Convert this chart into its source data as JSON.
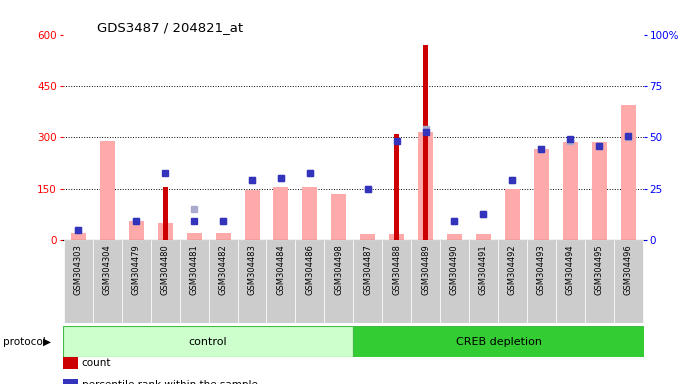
{
  "title": "GDS3487 / 204821_at",
  "samples": [
    "GSM304303",
    "GSM304304",
    "GSM304479",
    "GSM304480",
    "GSM304481",
    "GSM304482",
    "GSM304483",
    "GSM304484",
    "GSM304486",
    "GSM304498",
    "GSM304487",
    "GSM304488",
    "GSM304489",
    "GSM304490",
    "GSM304491",
    "GSM304492",
    "GSM304493",
    "GSM304494",
    "GSM304495",
    "GSM304496"
  ],
  "group_control_count": 10,
  "group_labels": [
    "control",
    "CREB depletion"
  ],
  "count_values": [
    0,
    0,
    0,
    155,
    0,
    0,
    0,
    0,
    0,
    0,
    0,
    310,
    570,
    0,
    0,
    0,
    0,
    0,
    0,
    0
  ],
  "percentile_values": [
    30,
    0,
    55,
    195,
    55,
    55,
    175,
    180,
    195,
    0,
    150,
    290,
    315,
    55,
    75,
    175,
    265,
    295,
    275,
    305
  ],
  "absent_value_bars": [
    20,
    290,
    55,
    50,
    20,
    20,
    145,
    155,
    155,
    135,
    18,
    18,
    315,
    18,
    18,
    150,
    265,
    285,
    285,
    395
  ],
  "absent_rank_bars": [
    30,
    0,
    55,
    0,
    90,
    55,
    175,
    180,
    195,
    0,
    150,
    0,
    325,
    55,
    75,
    175,
    265,
    290,
    275,
    300
  ],
  "ylim_left": [
    0,
    600
  ],
  "ylim_right": [
    0,
    100
  ],
  "yticks_left": [
    0,
    150,
    300,
    450,
    600
  ],
  "yticks_right": [
    0,
    25,
    50,
    75,
    100
  ],
  "bar_color_count": "#cc0000",
  "bar_color_percentile": "#3333bb",
  "bar_color_absent_value": "#ffaaaa",
  "bar_color_absent_rank": "#aaaacc",
  "plot_bg": "#ffffff",
  "axes_bg": "#ffffff",
  "control_color_light": "#ccffcc",
  "control_color_dark": "#33cc33",
  "xtick_bg": "#cccccc"
}
